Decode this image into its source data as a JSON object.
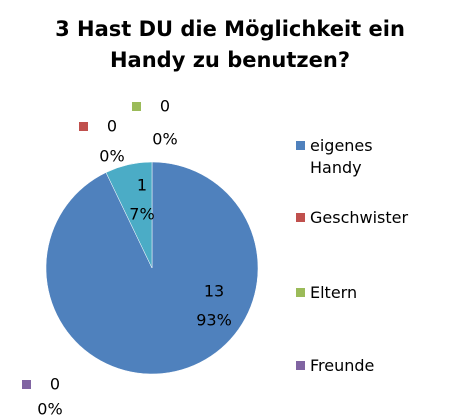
{
  "chart_data": {
    "type": "pie",
    "title": "3 Hast DU die Möglichkeit ein Handy zu benutzen?",
    "categories": [
      "eigenes Handy",
      "Geschwister",
      "Eltern",
      "Freunde",
      null
    ],
    "values": [
      13,
      0,
      0,
      0,
      1
    ],
    "percent_labels": [
      "93%",
      "0%",
      "0%",
      "0%",
      "7%"
    ],
    "colors": [
      "#4f81bd",
      "#c0504d",
      "#9bbb59",
      "#8064a2",
      "#4bacc6"
    ],
    "legend": "right"
  }
}
